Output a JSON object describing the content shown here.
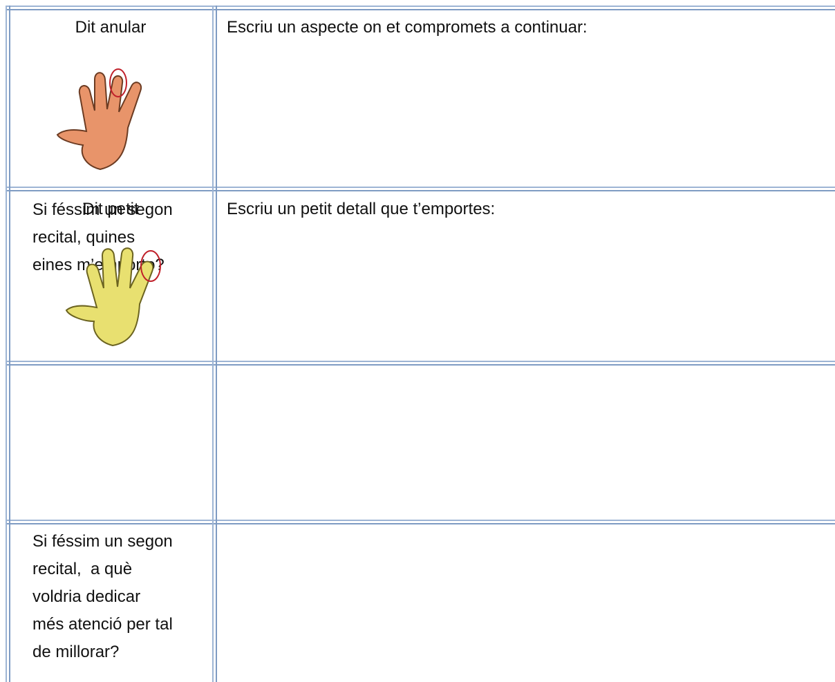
{
  "rows": [
    {
      "label": "Dit anular",
      "prompt": "Escriu un aspecte on et compromets a continuar:"
    },
    {
      "label": "Dit petit",
      "prompt": "Escriu un petit detall que t’emportes:"
    },
    {
      "label_lines": [
        "Si féssim un segon",
        "recital, quines",
        "eines m’emporto?"
      ]
    },
    {
      "label_lines": [
        "Si féssim un segon",
        "recital,  a què",
        "voldria dedicar",
        "més atenció per tal",
        "de millorar?"
      ]
    }
  ]
}
